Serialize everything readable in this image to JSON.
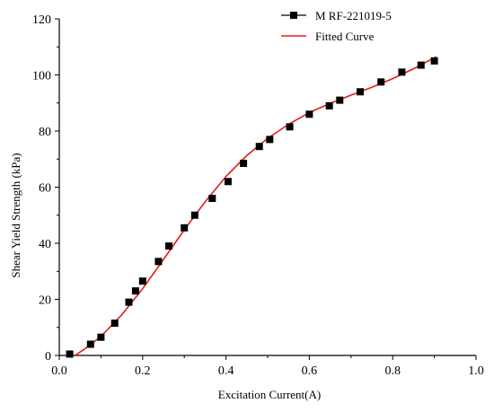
{
  "chart_data": {
    "type": "scatter",
    "xlabel": "Excitation Current(A)",
    "ylabel": "Shear Yield Strength (kPa)",
    "xlim": [
      0.0,
      1.0
    ],
    "ylim": [
      0,
      120
    ],
    "x_ticks": [
      "0.0",
      "0.2",
      "0.4",
      "0.6",
      "0.8",
      "1.0"
    ],
    "y_ticks": [
      "0",
      "20",
      "40",
      "60",
      "80",
      "100",
      "120"
    ],
    "legend_position": "top-right",
    "series": [
      {
        "name": "M RF-221019-5",
        "kind": "scatter",
        "marker": "square",
        "color": "#000000",
        "x": [
          0.025,
          0.075,
          0.1,
          0.133,
          0.167,
          0.183,
          0.2,
          0.238,
          0.263,
          0.3,
          0.325,
          0.367,
          0.405,
          0.442,
          0.48,
          0.505,
          0.553,
          0.6,
          0.648,
          0.673,
          0.722,
          0.772,
          0.822,
          0.868,
          0.9
        ],
        "y": [
          0.5,
          4,
          6.5,
          11.5,
          19,
          23,
          26.5,
          33.5,
          39,
          45.5,
          50,
          56,
          62,
          68.5,
          74.5,
          77,
          81.5,
          86,
          89,
          91,
          94,
          97.5,
          101,
          103.5,
          105
        ]
      },
      {
        "name": "Fitted Curve",
        "kind": "line",
        "color": "#e0201c",
        "x": [
          0.038,
          0.06,
          0.1,
          0.15,
          0.2,
          0.25,
          0.3,
          0.35,
          0.4,
          0.45,
          0.5,
          0.55,
          0.6,
          0.65,
          0.7,
          0.75,
          0.8,
          0.85,
          0.905
        ],
        "y": [
          0,
          2.2,
          6.8,
          14.5,
          23.8,
          34.2,
          44.8,
          54.8,
          63.8,
          71.3,
          77.4,
          82.4,
          86.6,
          89.9,
          92.8,
          95.6,
          98.7,
          102.2,
          106.5
        ]
      }
    ]
  }
}
